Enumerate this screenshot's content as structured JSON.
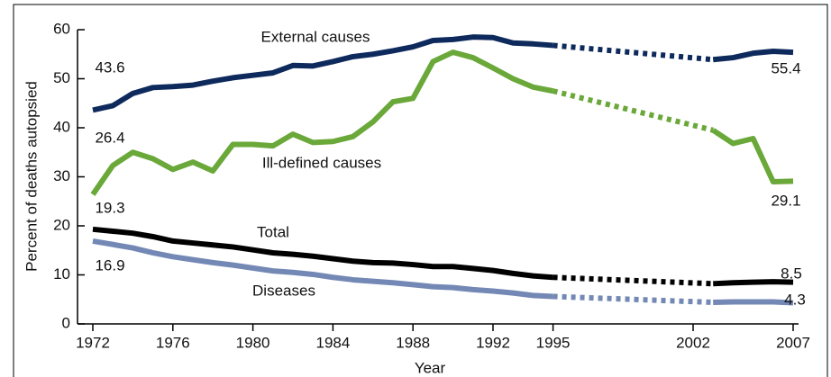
{
  "chart_data": {
    "type": "line",
    "x_label": "Year",
    "y_label": "Percent of deaths autopsied",
    "x": [
      1972,
      1973,
      1974,
      1975,
      1976,
      1977,
      1978,
      1979,
      1980,
      1981,
      1982,
      1983,
      1984,
      1985,
      1986,
      1987,
      1988,
      1989,
      1990,
      1991,
      1992,
      1993,
      1994,
      1995,
      2003,
      2004,
      2005,
      2006,
      2007
    ],
    "series": [
      {
        "name": "External causes",
        "color": "#0e2a5c",
        "values": [
          43.6,
          44.5,
          47,
          48.2,
          48.4,
          48.7,
          49.5,
          50.2,
          50.7,
          51.2,
          52.7,
          52.6,
          53.5,
          54.5,
          55,
          55.7,
          56.5,
          57.8,
          58,
          58.5,
          58.4,
          57.3,
          57.1,
          56.8,
          53.9,
          54.3,
          55.2,
          55.6,
          55.4
        ]
      },
      {
        "name": "Ill-defined causes",
        "color": "#6aa83a",
        "values": [
          26.4,
          32.3,
          35,
          33.7,
          31.5,
          33,
          31.2,
          36.6,
          36.6,
          36.3,
          38.7,
          37,
          37.2,
          38.2,
          41.2,
          45.3,
          46,
          53.5,
          55.4,
          54.3,
          52.2,
          50,
          48.3,
          47.5,
          39.5,
          36.8,
          37.8,
          29,
          29.1
        ]
      },
      {
        "name": "Total",
        "color": "#000000",
        "values": [
          19.3,
          18.9,
          18.5,
          17.8,
          16.9,
          16.5,
          16.1,
          15.7,
          15.1,
          14.5,
          14.2,
          13.8,
          13.3,
          12.8,
          12.5,
          12.4,
          12.1,
          11.7,
          11.7,
          11.3,
          10.9,
          10.3,
          9.8,
          9.5,
          8.2,
          8.4,
          8.5,
          8.6,
          8.5
        ]
      },
      {
        "name": "Diseases",
        "color": "#7388b4",
        "values": [
          16.9,
          16.2,
          15.5,
          14.5,
          13.7,
          13.1,
          12.5,
          12,
          11.4,
          10.8,
          10.5,
          10.1,
          9.5,
          9,
          8.7,
          8.4,
          8,
          7.6,
          7.4,
          7,
          6.7,
          6.3,
          5.8,
          5.6,
          4.4,
          4.5,
          4.5,
          4.5,
          4.3
        ]
      }
    ],
    "xlim": [
      1972,
      2007
    ],
    "xticks": [
      1972,
      1976,
      1980,
      1984,
      1988,
      1992,
      1995,
      2002,
      2007
    ],
    "ylim": [
      0,
      60
    ],
    "yticks": [
      0,
      10,
      20,
      30,
      40,
      50,
      60
    ]
  }
}
